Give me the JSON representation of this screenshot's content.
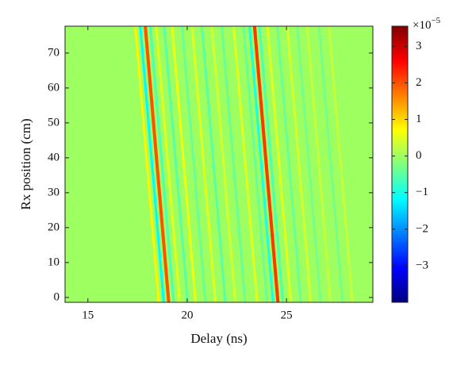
{
  "chart_data": {
    "type": "heatmap",
    "colormap": "jet",
    "xlabel": "Delay (ns)",
    "ylabel": "Rx position (cm)",
    "xlim": [
      13.85,
      29.35
    ],
    "xticks": [
      15,
      20,
      25
    ],
    "ylim": [
      -1.4,
      77.7
    ],
    "yticks": [
      0,
      10,
      20,
      30,
      40,
      50,
      60,
      70
    ],
    "clim": [
      -4.0,
      3.55
    ],
    "cticks": [
      {
        "value": -3,
        "label": "−3"
      },
      {
        "value": -2,
        "label": "−2"
      },
      {
        "value": -1,
        "label": "−1"
      },
      0,
      1,
      2,
      3
    ],
    "colorbar_scale": {
      "base": "×10",
      "exponent": "−5"
    },
    "background_value": 0,
    "streak_positions": [
      0,
      77
    ],
    "streaks": [
      {
        "delays": [
          18.55,
          17.4
        ],
        "value": 0.8
      },
      {
        "delays": [
          18.8,
          17.65
        ],
        "value": -1.2
      },
      {
        "delays": [
          19.05,
          17.9
        ],
        "value": 2
      },
      {
        "delays": [
          19.3,
          18.15
        ],
        "value": -0.6
      },
      {
        "delays": [
          19.6,
          18.45
        ],
        "value": 0.5
      },
      {
        "delays": [
          20.0,
          18.85
        ],
        "value": -0.5
      },
      {
        "delays": [
          20.4,
          19.25
        ],
        "value": 0.6
      },
      {
        "delays": [
          20.9,
          19.75
        ],
        "value": -0.4
      },
      {
        "delays": [
          21.4,
          20.25
        ],
        "value": 0.5
      },
      {
        "delays": [
          21.9,
          20.75
        ],
        "value": -0.5
      },
      {
        "delays": [
          22.4,
          21.25
        ],
        "value": 0.4
      },
      {
        "delays": [
          22.9,
          21.75
        ],
        "value": -0.4
      },
      {
        "delays": [
          23.5,
          22.35
        ],
        "value": 0.5
      },
      {
        "delays": [
          24.0,
          22.85
        ],
        "value": -0.4
      },
      {
        "delays": [
          24.3,
          23.15
        ],
        "value": -1.0
      },
      {
        "delays": [
          24.55,
          23.4
        ],
        "value": 2.2
      },
      {
        "delays": [
          24.8,
          23.65
        ],
        "value": -0.6
      },
      {
        "delays": [
          25.2,
          24.05
        ],
        "value": 0.5
      },
      {
        "delays": [
          25.7,
          24.55
        ],
        "value": -0.4
      },
      {
        "delays": [
          26.2,
          25.05
        ],
        "value": 0.4
      },
      {
        "delays": [
          26.7,
          25.55
        ],
        "value": -0.3
      },
      {
        "delays": [
          27.2,
          26.05
        ],
        "value": 0.3
      },
      {
        "delays": [
          27.8,
          26.65
        ],
        "value": -0.3
      },
      {
        "delays": [
          28.3,
          27.15
        ],
        "value": 0.3
      }
    ]
  }
}
